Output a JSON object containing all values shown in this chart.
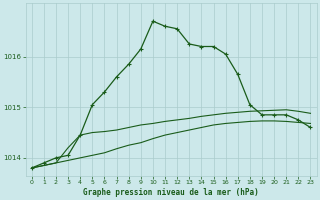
{
  "title": "Graphe pression niveau de la mer (hPa)",
  "background_color": "#cce8ea",
  "grid_color": "#aacccc",
  "line_color": "#1a5c1a",
  "xlim": [
    -0.5,
    23.5
  ],
  "ylim": [
    1013.65,
    1017.05
  ],
  "yticks": [
    1014,
    1015,
    1016
  ],
  "xticks": [
    0,
    1,
    2,
    3,
    4,
    5,
    6,
    7,
    8,
    9,
    10,
    11,
    12,
    13,
    14,
    15,
    16,
    17,
    18,
    19,
    20,
    21,
    22,
    23
  ],
  "series1": [
    1013.8,
    1013.9,
    1014.0,
    1014.05,
    1014.45,
    1015.05,
    1015.3,
    1015.6,
    1015.85,
    1016.15,
    1016.7,
    1016.6,
    1016.55,
    1016.25,
    1016.2,
    1016.2,
    1016.05,
    1015.65,
    1015.05,
    1014.85,
    1014.85,
    1014.85,
    1014.75,
    1014.6
  ],
  "series2": [
    1013.8,
    1013.85,
    1013.9,
    1014.2,
    1014.45,
    1014.5,
    1014.52,
    1014.55,
    1014.6,
    1014.65,
    1014.68,
    1014.72,
    1014.75,
    1014.78,
    1014.82,
    1014.85,
    1014.88,
    1014.9,
    1014.92,
    1014.93,
    1014.94,
    1014.95,
    1014.92,
    1014.88
  ],
  "series3": [
    1013.8,
    1013.85,
    1013.9,
    1013.95,
    1014.0,
    1014.05,
    1014.1,
    1014.18,
    1014.25,
    1014.3,
    1014.38,
    1014.45,
    1014.5,
    1014.55,
    1014.6,
    1014.65,
    1014.68,
    1014.7,
    1014.72,
    1014.73,
    1014.73,
    1014.72,
    1014.7,
    1014.68
  ]
}
